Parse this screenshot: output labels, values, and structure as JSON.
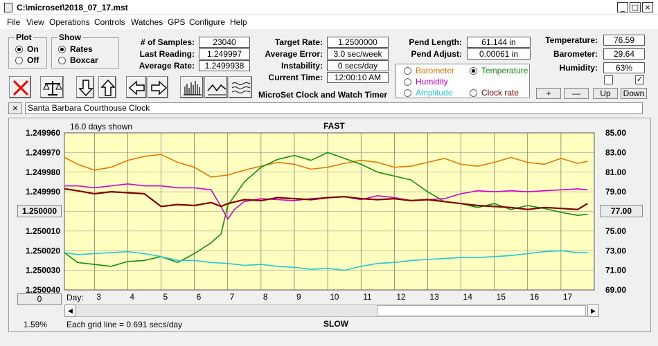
{
  "window": {
    "title": "C:\\microset\\2018_07_17.mst",
    "minimize": "_",
    "maximize": "□",
    "close": "×"
  },
  "menu": [
    "File",
    "View",
    "Operations",
    "Controls",
    "Watches",
    "GPS",
    "Configure",
    "Help"
  ],
  "plot_group": {
    "legend": "Plot",
    "options": [
      "On",
      "Off"
    ],
    "selected": 0
  },
  "show_group": {
    "legend": "Show",
    "options": [
      "Rates",
      "Boxcar"
    ],
    "selected": 0
  },
  "stats": {
    "samples_label": "# of Samples:",
    "samples": "23040",
    "last_label": "Last Reading:",
    "last": "1.249997",
    "avg_rate_label": "Average Rate:",
    "avg_rate": "1.2499938",
    "target_label": "Target Rate:",
    "target": "1.2500000",
    "avg_err_label": "Average Error:",
    "avg_err": "3.0 sec/week",
    "instab_label": "Instability:",
    "instab": "0 secs/day",
    "time_label": "Current Time:",
    "time": "12:00:10 AM",
    "pend_len_label": "Pend Length:",
    "pend_len": "61.144 in",
    "pend_adj_label": "Pend Adjust:",
    "pend_adj": "0.00061 in",
    "temp_label": "Temperature:",
    "temp": "76.59",
    "baro_label": "Barometer:",
    "baro": "29.64",
    "hum_label": "Humidity:",
    "hum": "63%"
  },
  "app_caption": "MicroSet Clock and Watch Timer",
  "sensor_options": [
    {
      "label": "Barometer",
      "color": "#e07800",
      "selected": false
    },
    {
      "label": "Temperature",
      "color": "#109010",
      "selected": true
    },
    {
      "label": "Humidity",
      "color": "#d000d0",
      "selected": false
    },
    {
      "label": "Clock rate",
      "color": "#800000",
      "selected": false
    },
    {
      "label": "Amplitude",
      "color": "#20c8d8",
      "selected": false
    }
  ],
  "adjust_buttons": [
    "+",
    "—",
    "Up",
    "Down"
  ],
  "checkboxes": [
    false,
    true
  ],
  "watch_name": "Santa Barbara Courthouse Clock",
  "watch_close": "×",
  "chart_data": {
    "type": "line",
    "top_label": "FAST",
    "bottom_label": "SLOW",
    "days_shown": "16.0 days shown",
    "grid_note": "Each grid line = 0.691 secs/day",
    "percent": "1.59%",
    "left_button": "0",
    "right_button": "77.00",
    "center_button": "1.250000",
    "xlabel": "Day:",
    "x_ticks": [
      "3",
      "4",
      "5",
      "6",
      "7",
      "8",
      "9",
      "10",
      "11",
      "12",
      "13",
      "14",
      "15",
      "16",
      "17"
    ],
    "y_left_ticks": [
      "1.249960",
      "1.249970",
      "1.249980",
      "1.249990",
      "1.250000",
      "1.250010",
      "1.250020",
      "1.250030",
      "1.250040"
    ],
    "y_right_ticks": [
      "85.00",
      "83.00",
      "81.00",
      "79.00",
      "77.00",
      "75.00",
      "73.00",
      "71.00",
      "69.00"
    ],
    "ylim_right": [
      69,
      85
    ],
    "xlim": [
      2.1,
      18.0
    ],
    "series": [
      {
        "name": "Barometer",
        "color": "#e07800",
        "x": [
          2.1,
          2.5,
          3.0,
          3.5,
          4.0,
          4.5,
          5.0,
          5.5,
          6.0,
          6.5,
          7.0,
          7.5,
          8.0,
          8.5,
          9.0,
          9.5,
          10.0,
          10.5,
          11.0,
          11.5,
          12.0,
          12.5,
          13.0,
          13.5,
          14.0,
          14.5,
          15.0,
          15.5,
          16.0,
          16.5,
          17.0,
          17.5,
          17.8
        ],
        "y": [
          82.5,
          81.8,
          81.2,
          81.5,
          82.2,
          82.6,
          82.8,
          82.0,
          81.5,
          80.5,
          80.7,
          81.2,
          81.6,
          82.0,
          81.8,
          81.3,
          81.5,
          81.9,
          82.2,
          82.0,
          81.5,
          81.6,
          82.0,
          82.4,
          81.8,
          81.6,
          82.0,
          82.5,
          82.0,
          81.8,
          82.4,
          81.9,
          82.1
        ]
      },
      {
        "name": "Temperature",
        "color": "#109010",
        "x": [
          2.1,
          2.5,
          3.0,
          3.5,
          4.0,
          4.5,
          5.0,
          5.5,
          6.0,
          6.5,
          6.8,
          7.0,
          7.5,
          8.0,
          8.5,
          9.0,
          9.5,
          10.0,
          10.5,
          11.0,
          11.5,
          12.0,
          12.5,
          13.0,
          13.5,
          14.0,
          14.5,
          15.0,
          15.5,
          16.0,
          16.5,
          17.0,
          17.5,
          17.8
        ],
        "y": [
          72.8,
          71.8,
          71.6,
          71.4,
          71.9,
          72.0,
          72.4,
          71.8,
          72.7,
          73.8,
          74.7,
          77.6,
          80.0,
          81.5,
          82.3,
          82.7,
          82.2,
          83.0,
          82.4,
          81.8,
          81.0,
          80.6,
          80.2,
          79.0,
          78.0,
          77.8,
          77.4,
          77.8,
          77.2,
          77.6,
          77.3,
          76.9,
          76.6,
          76.7
        ]
      },
      {
        "name": "Humidity",
        "color": "#d000d0",
        "x": [
          2.1,
          2.5,
          3.0,
          3.5,
          4.0,
          4.5,
          5.0,
          5.5,
          6.0,
          6.5,
          6.8,
          7.0,
          7.2,
          7.5,
          8.0,
          8.5,
          9.0,
          9.5,
          10.0,
          10.5,
          11.0,
          11.5,
          12.0,
          12.5,
          13.0,
          13.5,
          14.0,
          14.5,
          15.0,
          15.5,
          16.0,
          16.5,
          17.0,
          17.5,
          17.8
        ],
        "y": [
          79.6,
          79.6,
          79.4,
          79.6,
          79.8,
          79.6,
          79.6,
          79.4,
          79.4,
          79.2,
          77.5,
          76.2,
          77.2,
          78.0,
          78.3,
          78.2,
          78.1,
          78.3,
          78.4,
          78.5,
          78.2,
          78.6,
          78.4,
          78.1,
          78.2,
          78.3,
          78.8,
          79.1,
          79.0,
          79.1,
          79.0,
          79.1,
          79.2,
          79.3,
          79.2
        ]
      },
      {
        "name": "Clock rate",
        "color": "#800000",
        "x": [
          2.1,
          2.5,
          3.0,
          3.5,
          4.0,
          4.5,
          5.0,
          5.5,
          6.0,
          6.5,
          6.8,
          7.0,
          7.5,
          8.0,
          8.5,
          9.0,
          9.5,
          10.0,
          10.5,
          11.0,
          11.5,
          12.0,
          12.5,
          13.0,
          13.5,
          14.0,
          14.5,
          15.0,
          15.5,
          16.0,
          16.5,
          17.0,
          17.5,
          17.8
        ],
        "y": [
          79.3,
          79.1,
          78.8,
          79.0,
          78.9,
          78.8,
          77.5,
          77.7,
          77.6,
          77.9,
          77.5,
          77.8,
          78.2,
          78.1,
          78.4,
          78.3,
          78.2,
          78.4,
          78.5,
          78.3,
          78.2,
          78.3,
          78.1,
          78.2,
          78.0,
          77.8,
          77.6,
          77.5,
          77.4,
          77.2,
          77.4,
          77.3,
          77.2,
          77.8
        ]
      },
      {
        "name": "Amplitude",
        "color": "#20c8d8",
        "x": [
          2.1,
          2.5,
          3.0,
          3.5,
          4.0,
          4.5,
          5.0,
          5.5,
          6.0,
          6.5,
          7.0,
          7.5,
          8.0,
          8.5,
          9.0,
          9.5,
          10.0,
          10.5,
          11.0,
          11.5,
          12.0,
          12.5,
          13.0,
          13.5,
          14.0,
          14.5,
          15.0,
          15.5,
          16.0,
          16.5,
          17.0,
          17.5,
          17.8
        ],
        "y": [
          72.8,
          72.6,
          72.7,
          72.8,
          72.9,
          72.7,
          72.4,
          72.0,
          72.0,
          71.8,
          71.7,
          71.5,
          71.6,
          71.4,
          71.3,
          71.1,
          71.2,
          71.0,
          71.4,
          71.7,
          71.8,
          72.0,
          72.1,
          72.2,
          72.3,
          72.3,
          72.4,
          72.5,
          72.7,
          72.9,
          73.0,
          72.8,
          72.8
        ]
      }
    ]
  }
}
